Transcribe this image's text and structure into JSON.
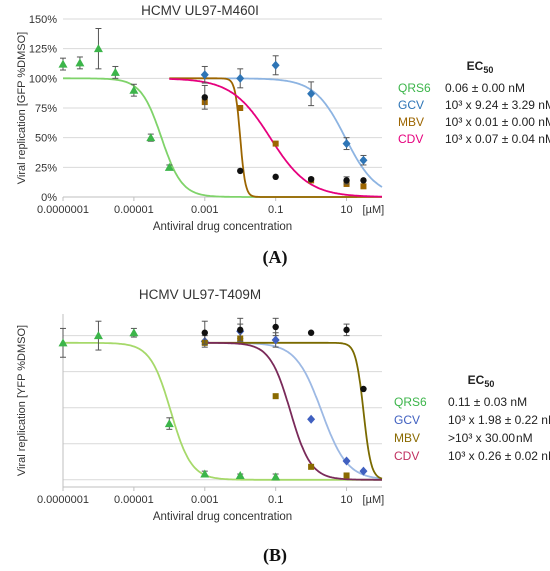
{
  "chart_data": [
    {
      "type": "scatter",
      "panel_label": "(A)",
      "title": "HCMV UL97-M460I",
      "xlabel": "Antiviral drug concentration",
      "ylabel": "Viral replication [GFP %DMSO]",
      "x_scale": "log",
      "xlim": [
        1e-07,
        100
      ],
      "ylim": [
        0,
        150
      ],
      "x_ticks": [
        "0.0000001",
        "0.00001",
        "0.001",
        "0.1",
        "10"
      ],
      "x_unit_label": "[µM]",
      "y_ticks": [
        "0%",
        "25%",
        "50%",
        "75%",
        "100%",
        "125%",
        "150%"
      ],
      "y_tick_values": [
        0,
        25,
        50,
        75,
        100,
        125,
        150
      ],
      "grid": "horizontal",
      "legend_title": "EC",
      "legend_title_sub": "50",
      "series": [
        {
          "name": "QRS6",
          "value_text": "0.06 ± 0.00 nM",
          "color": "#3cb54a",
          "curve_color": "#7fd36a",
          "marker": "triangle",
          "points": [
            [
              1e-07,
              112,
              5
            ],
            [
              3e-07,
              113,
              5
            ],
            [
              1e-06,
              125,
              17
            ],
            [
              3e-06,
              105,
              5
            ],
            [
              1e-05,
              90,
              5
            ],
            [
              3e-05,
              50,
              3
            ],
            [
              0.0001,
              25,
              2
            ]
          ],
          "curve": {
            "ec50": 6e-05,
            "hill": 1.5,
            "top": 100,
            "bottom": 0,
            "from": 1e-07,
            "to": 20
          }
        },
        {
          "name": "GCV",
          "value_text": "10³ x 9.24 ± 3.29 nM",
          "color": "#2e75b6",
          "curve_color": "#8db4e2",
          "marker": "diamond",
          "points": [
            [
              0.001,
              103,
              7
            ],
            [
              0.01,
              100,
              8
            ],
            [
              0.1,
              111,
              8
            ],
            [
              1,
              87,
              10
            ],
            [
              10,
              45,
              5
            ],
            [
              30,
              31,
              4
            ]
          ],
          "curve": {
            "ec50": 9.24,
            "hill": 1.0,
            "top": 100,
            "bottom": 0,
            "from": 0.001,
            "to": 100
          }
        },
        {
          "name": "MBV",
          "value_text": "10³ x 0.01 ± 0.00 nM",
          "color": "#9c6500",
          "curve_color": "#9c6500",
          "marker": "square",
          "points": [
            [
              0.001,
              80,
              0
            ],
            [
              0.01,
              75,
              0
            ],
            [
              0.1,
              45,
              0
            ],
            [
              1,
              14,
              0
            ],
            [
              10,
              11,
              0
            ],
            [
              30,
              9,
              0
            ]
          ],
          "curve": {
            "ec50": 0.01,
            "hill": 6,
            "top": 100,
            "bottom": 0,
            "from": 0.0001,
            "to": 100
          }
        },
        {
          "name": "CDV",
          "value_text": "10³ x 0.07 ± 0.04 nM",
          "color": "#e6007e",
          "curve_color": "#e6007e",
          "marker": "circle",
          "points": [],
          "curve": {
            "ec50": 0.07,
            "hill": 0.8,
            "top": 100,
            "bottom": 0,
            "from": 0.0001,
            "to": 100
          }
        },
        {
          "name": "",
          "value_text": "",
          "color": "#111111",
          "curve_color": "",
          "marker": "circle",
          "points": [
            [
              0.001,
              84,
              10
            ],
            [
              0.01,
              22,
              0
            ],
            [
              0.1,
              17,
              0
            ],
            [
              1,
              15,
              0
            ],
            [
              10,
              14,
              3
            ],
            [
              30,
              14,
              0
            ]
          ],
          "curve": null
        }
      ]
    },
    {
      "type": "scatter",
      "panel_label": "(B)",
      "title": "HCMV UL97-T409M",
      "xlabel": "Antiviral drug concentration",
      "ylabel": "Viral replication [YFP %DMSO]",
      "x_scale": "log",
      "xlim": [
        1e-07,
        100
      ],
      "ylim": [
        -5,
        115
      ],
      "x_ticks": [
        "0.0000001",
        "0.00001",
        "0.001",
        "0.1",
        "10"
      ],
      "x_unit_label": "[µM]",
      "y_ticks": [],
      "y_tick_values": [],
      "grid": "horizontal",
      "legend_title": "EC",
      "legend_title_sub": "50",
      "series": [
        {
          "name": "QRS6",
          "value_text": "0.11 ± 0.03 nM",
          "color": "#3cb54a",
          "curve_color": "#a6d96a",
          "marker": "triangle",
          "points": [
            [
              1e-07,
              95,
              10
            ],
            [
              1e-06,
              100,
              10
            ],
            [
              1e-05,
              102,
              3
            ],
            [
              0.0001,
              39,
              4
            ],
            [
              0.001,
              4,
              2
            ],
            [
              0.01,
              3,
              1
            ],
            [
              0.1,
              2,
              2
            ]
          ],
          "curve": {
            "ec50": 0.00011,
            "hill": 1.5,
            "top": 95,
            "bottom": 0,
            "from": 1e-07,
            "to": 100
          }
        },
        {
          "name": "GCV",
          "value_text": "10³ x 1.98 ± 0.22 nM",
          "color": "#4060c0",
          "curve_color": "#9db9e4",
          "marker": "diamond",
          "points": [
            [
              0.001,
              96,
              4
            ],
            [
              0.01,
              103,
              5
            ],
            [
              0.1,
              97,
              5
            ],
            [
              1,
              42,
              0
            ],
            [
              10,
              13,
              0
            ],
            [
              30,
              6,
              0
            ]
          ],
          "curve": {
            "ec50": 1.98,
            "hill": 1.2,
            "top": 95,
            "bottom": 0,
            "from": 0.001,
            "to": 100
          }
        },
        {
          "name": "MBV",
          "value_text": ">10³ x 30.00",
          "value_unit": "nM",
          "color": "#8a6a00",
          "curve_color": "#7a6a00",
          "marker": "square",
          "points": [
            [
              0.001,
              95,
              0
            ],
            [
              0.01,
              98,
              0
            ],
            [
              0.1,
              58,
              0
            ],
            [
              1,
              9,
              0
            ],
            [
              10,
              3,
              0
            ]
          ],
          "curve": {
            "ec50": 30,
            "hill": 4,
            "top": 95,
            "bottom": 0,
            "from": 0.001,
            "to": 100
          }
        },
        {
          "name": "CDV",
          "value_text": "10³ x 0.26 ± 0.02 nM",
          "color": "#c03060",
          "curve_color": "#7a2a5a",
          "marker": "circle",
          "points": [],
          "curve": {
            "ec50": 0.26,
            "hill": 1.5,
            "top": 95,
            "bottom": 0,
            "from": 0.001,
            "to": 100
          }
        },
        {
          "name": "",
          "value_text": "",
          "color": "#111111",
          "curve_color": "",
          "marker": "circle",
          "points": [
            [
              0.001,
              102,
              8
            ],
            [
              0.01,
              104,
              8
            ],
            [
              0.1,
              106,
              6
            ],
            [
              1,
              102,
              0
            ],
            [
              10,
              104,
              4
            ],
            [
              30,
              63,
              0
            ]
          ],
          "curve": null
        }
      ]
    }
  ]
}
